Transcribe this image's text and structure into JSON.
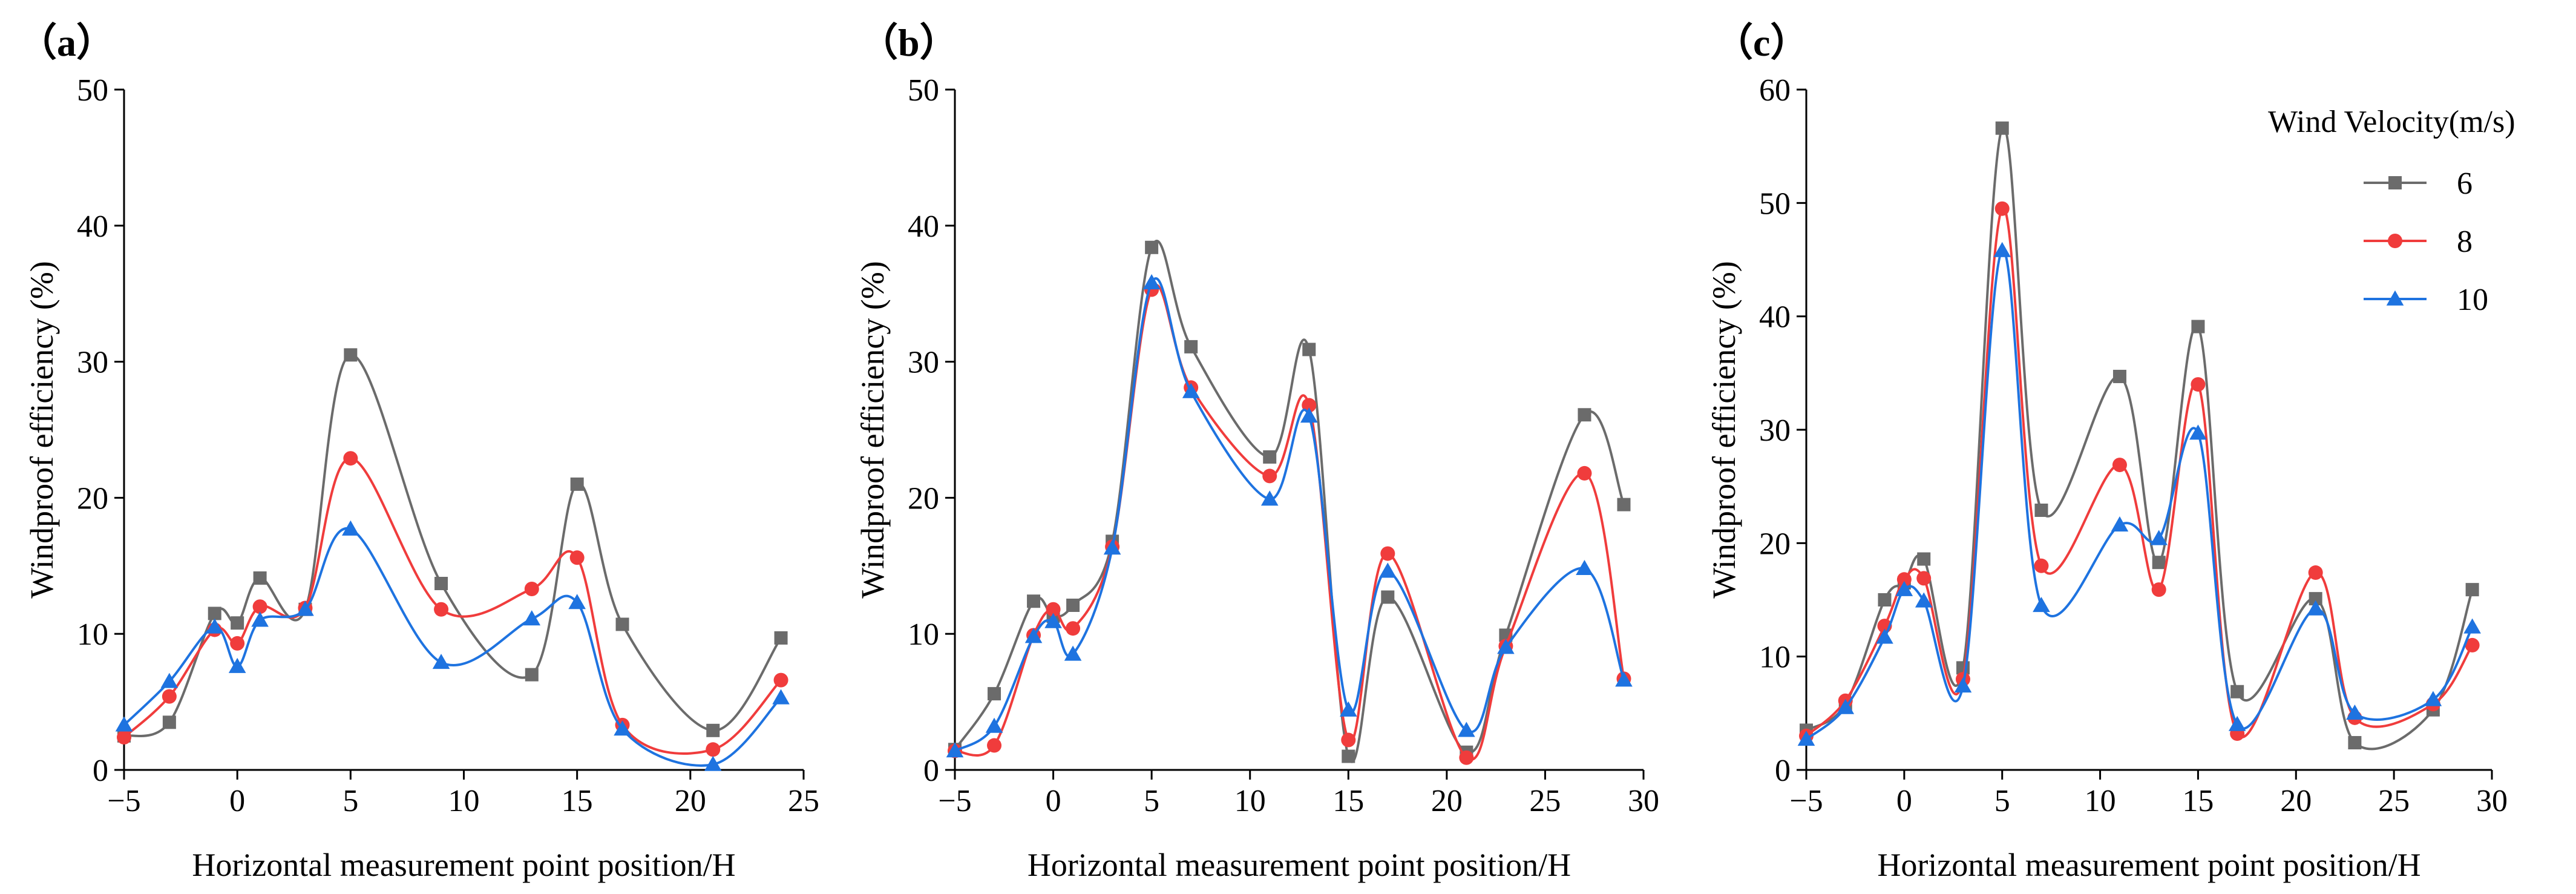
{
  "chart_data": [
    {
      "type": "line",
      "panel_label": "（a）",
      "xlabel": "Horizontal measurement point position/H",
      "ylabel": "Windproof efficiency (%)",
      "xlim": [
        -5,
        25
      ],
      "ylim": [
        0,
        50
      ],
      "xticks": [
        -5,
        0,
        5,
        10,
        15,
        20,
        25
      ],
      "yticks": [
        0,
        10,
        20,
        30,
        40,
        50
      ],
      "x": [
        -5,
        -3,
        -1,
        0,
        1,
        3,
        5,
        9,
        13,
        15,
        17,
        21,
        24
      ],
      "series": [
        {
          "name": "6",
          "color": "#6b6b6b",
          "marker": "square",
          "values": [
            2.5,
            3.5,
            11.5,
            10.8,
            14.1,
            11.8,
            30.5,
            13.7,
            7.0,
            21.0,
            10.7,
            2.9,
            9.7
          ]
        },
        {
          "name": "8",
          "color": "#f03c3c",
          "marker": "circle",
          "values": [
            2.4,
            5.4,
            10.3,
            9.3,
            12.0,
            11.9,
            22.9,
            11.8,
            13.3,
            15.6,
            3.3,
            1.5,
            6.6
          ]
        },
        {
          "name": "10",
          "color": "#1e73e0",
          "marker": "triangle",
          "values": [
            3.3,
            6.5,
            10.5,
            7.6,
            11.0,
            11.8,
            17.7,
            7.9,
            11.1,
            12.3,
            3.0,
            0.4,
            5.3
          ]
        }
      ]
    },
    {
      "type": "line",
      "panel_label": "（b）",
      "xlabel": "Horizontal measurement point position/H",
      "ylabel": "Windproof efficiency (%)",
      "xlim": [
        -5,
        30
      ],
      "ylim": [
        0,
        50
      ],
      "xticks": [
        -5,
        0,
        5,
        10,
        15,
        20,
        25,
        30
      ],
      "yticks": [
        0,
        10,
        20,
        30,
        40,
        50
      ],
      "x": [
        -5,
        -3,
        -1,
        0,
        1,
        3,
        5,
        7,
        11,
        13,
        15,
        17,
        21,
        23,
        27,
        29
      ],
      "series": [
        {
          "name": "6",
          "color": "#6b6b6b",
          "marker": "square",
          "values": [
            1.5,
            5.6,
            12.4,
            11.3,
            12.1,
            16.8,
            38.4,
            31.1,
            23.0,
            30.9,
            1.0,
            12.7,
            1.3,
            9.9,
            26.1,
            19.5
          ]
        },
        {
          "name": "8",
          "color": "#f03c3c",
          "marker": "circle",
          "values": [
            1.4,
            1.8,
            9.9,
            11.8,
            10.4,
            16.4,
            35.3,
            28.1,
            21.6,
            26.8,
            2.2,
            15.9,
            0.9,
            9.1,
            21.8,
            6.7
          ]
        },
        {
          "name": "10",
          "color": "#1e73e0",
          "marker": "triangle",
          "values": [
            1.4,
            3.2,
            9.8,
            10.9,
            8.5,
            16.3,
            35.8,
            27.8,
            19.9,
            26.0,
            4.4,
            14.6,
            2.9,
            9.0,
            14.8,
            6.6
          ]
        }
      ]
    },
    {
      "type": "line",
      "panel_label": "（c）",
      "xlabel": "Horizontal measurement point position/H",
      "ylabel": "Windproof efficiency (%)",
      "xlim": [
        -5,
        30
      ],
      "ylim": [
        0,
        60
      ],
      "xticks": [
        -5,
        0,
        5,
        10,
        15,
        20,
        25,
        30
      ],
      "yticks": [
        0,
        10,
        20,
        30,
        40,
        50,
        60
      ],
      "x": [
        -5,
        -3,
        -1,
        0,
        1,
        3,
        5,
        7,
        11,
        13,
        15,
        17,
        21,
        23,
        27,
        29
      ],
      "series": [
        {
          "name": "6",
          "color": "#6b6b6b",
          "marker": "square",
          "values": [
            3.5,
            5.8,
            15.0,
            16.5,
            18.6,
            9.0,
            56.6,
            22.9,
            34.7,
            18.3,
            39.1,
            6.9,
            15.1,
            2.4,
            5.3,
            15.9
          ]
        },
        {
          "name": "8",
          "color": "#f03c3c",
          "marker": "circle",
          "values": [
            3.0,
            6.1,
            12.7,
            16.8,
            16.9,
            8.0,
            49.5,
            18.0,
            26.9,
            15.9,
            34.0,
            3.2,
            17.4,
            4.6,
            5.8,
            11.0
          ]
        },
        {
          "name": "10",
          "color": "#1e73e0",
          "marker": "triangle",
          "values": [
            2.7,
            5.5,
            11.7,
            15.9,
            14.9,
            7.4,
            45.8,
            14.5,
            21.6,
            20.4,
            29.7,
            4.0,
            14.2,
            5.0,
            6.2,
            12.6
          ]
        }
      ]
    }
  ],
  "legend": {
    "title": "Wind Velocity(m/s)",
    "placement": "top-right",
    "items": [
      {
        "label": "6",
        "color": "#6b6b6b",
        "marker": "square"
      },
      {
        "label": "8",
        "color": "#f03c3c",
        "marker": "circle"
      },
      {
        "label": "10",
        "color": "#1e73e0",
        "marker": "triangle"
      }
    ]
  }
}
